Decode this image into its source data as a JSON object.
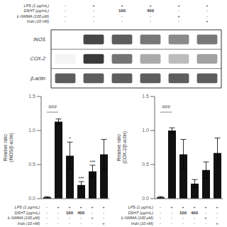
{
  "chart_data": [
    {
      "type": "heatmap",
      "categories": [
        null,
        null,
        null,
        null,
        null,
        null
      ],
      "rows": [
        "iNOS",
        "COX-2",
        "β-actin"
      ],
      "cells": [
        [
          0.0,
          0.82,
          0.72,
          0.6,
          0.52,
          0.6
        ],
        [
          0.05,
          0.88,
          0.62,
          0.38,
          0.3,
          0.42
        ],
        [
          0.72,
          0.72,
          0.72,
          0.72,
          0.72,
          0.72
        ]
      ],
      "treatments": [
        {
          "name": "LPS (1 μg/mL)",
          "values": [
            "-",
            "+",
            "+",
            "+",
            "+",
            "+"
          ]
        },
        {
          "name": "DSHT (μg/mL)",
          "values": [
            "-",
            "-",
            "100",
            "400",
            "-",
            "-"
          ]
        },
        {
          "name": "Ł-NMMA (100 μM)",
          "values": [
            "-",
            "-",
            "-",
            "-",
            "+",
            "-"
          ]
        },
        {
          "name": "Indo (10 nM)",
          "values": [
            "-",
            "-",
            "-",
            "-",
            "-",
            "+"
          ]
        }
      ]
    },
    {
      "type": "bar",
      "y_label": "Relative ratio\n(iNOS/β-actin)",
      "categories": [
        null,
        null,
        null,
        null,
        null,
        null
      ],
      "values": [
        0.02,
        1.13,
        0.63,
        0.2,
        0.4,
        0.65
      ],
      "errors": [
        0.01,
        0.04,
        0.2,
        0.05,
        0.09,
        0.22
      ],
      "color": "#111111",
      "ylim": [
        0.0,
        1.5
      ],
      "yticks": [
        {
          "value": 0,
          "label": "0.0"
        },
        0.5,
        {
          "value": 1,
          "label": "1.0"
        },
        1.5
      ],
      "sig_labels": [
        null,
        null,
        "*",
        "***",
        "***",
        null
      ],
      "bracket": {
        "label": "###",
        "between": [
          0,
          1
        ],
        "y": 1.27
      },
      "treatments": [
        {
          "name": "LPS (1 μg/mL)",
          "values": [
            "-",
            "+",
            "+",
            "+",
            "+",
            "+"
          ]
        },
        {
          "name": "DSHT (μg/mL)",
          "values": [
            "-",
            "-",
            "100",
            "400",
            "-",
            "-"
          ]
        },
        {
          "name": "Ł-NMMA (100 μM)",
          "values": [
            "-",
            "-",
            "-",
            "-",
            "+",
            "-"
          ]
        },
        {
          "name": "Indo (10 nM)",
          "values": [
            "-",
            "-",
            "-",
            "-",
            "-",
            "+"
          ]
        }
      ]
    },
    {
      "type": "bar",
      "y_label": "Relative ratio\n(COX-2/β-actin)",
      "categories": [
        null,
        null,
        null,
        null,
        null,
        null
      ],
      "values": [
        0.02,
        1.0,
        0.65,
        0.22,
        0.42,
        0.67
      ],
      "errors": [
        0.01,
        0.04,
        0.22,
        0.06,
        0.12,
        0.22
      ],
      "color": "#111111",
      "ylim": [
        0.0,
        1.5
      ],
      "yticks": [
        {
          "value": 0,
          "label": "0.0"
        },
        0.5,
        {
          "value": 1,
          "label": "1.0"
        },
        1.5
      ],
      "bracket": {
        "label": "###",
        "between": [
          0,
          1
        ],
        "y": 1.27
      },
      "treatments": [
        {
          "name": "LPS (1 μg/mL)",
          "values": [
            "-",
            "+",
            "+",
            "+",
            "+",
            "+"
          ]
        },
        {
          "name": "DSHT (μg/mL)",
          "values": [
            "-",
            "-",
            "100",
            "400",
            "-",
            "-"
          ]
        },
        {
          "name": "Ł-NMMA (100 μM)",
          "values": [
            "-",
            "-",
            "-",
            "-",
            "+",
            "-"
          ]
        },
        {
          "name": "Indo (10 nM)",
          "values": [
            "-",
            "-",
            "-",
            "-",
            "-",
            "+"
          ]
        }
      ]
    }
  ]
}
